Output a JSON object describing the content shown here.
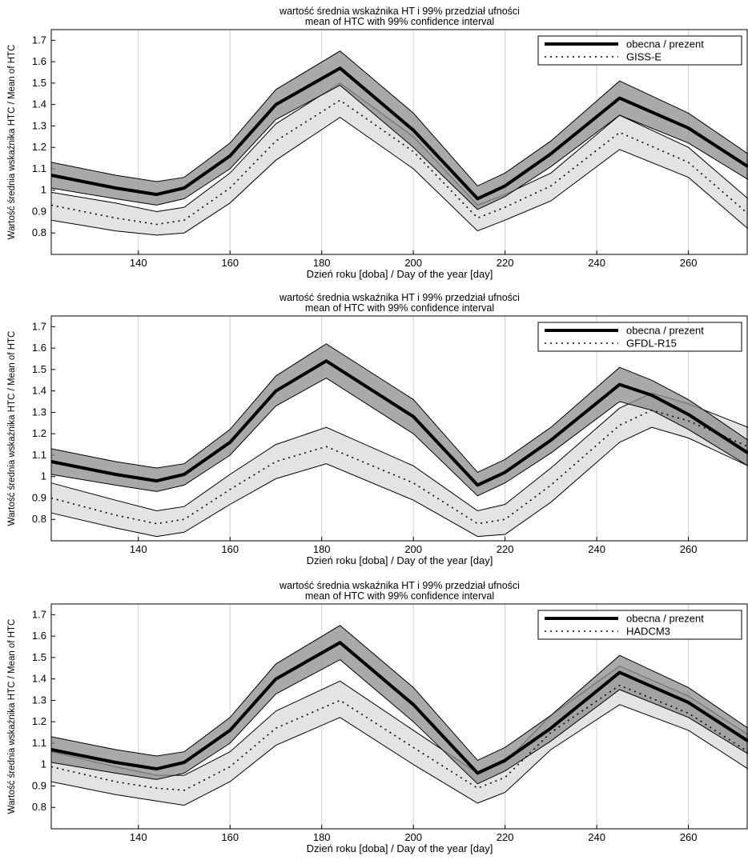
{
  "chart_data": [
    {
      "type": "line",
      "title": "wartość średnia wskaźnika HT i 99% przedział ufności",
      "subtitle": "mean of HTC with 99% confidence interval",
      "xlabel": "Dzień roku [doba] / Day of the year [day]",
      "ylabel": "Wartość średnia wskaźnika HTC / Mean of HTC",
      "xlim": [
        121,
        273
      ],
      "ylim": [
        0.7,
        1.75
      ],
      "xticks": [
        140,
        160,
        180,
        200,
        220,
        240,
        260
      ],
      "yticks": [
        0.8,
        0.9,
        1,
        1.1,
        1.2,
        1.3,
        1.4,
        1.5,
        1.6,
        1.7
      ],
      "grid": true,
      "legend": "top-right",
      "x": [
        121,
        135,
        144,
        150,
        160,
        170,
        184,
        200,
        214,
        220,
        230,
        245,
        260,
        273
      ],
      "series": [
        {
          "name": "obecna / prezent",
          "style": "solid-thick",
          "band_color": "#8c8c8c",
          "values": [
            1.07,
            1.01,
            0.98,
            1.01,
            1.16,
            1.4,
            1.57,
            1.28,
            0.96,
            1.02,
            1.17,
            1.43,
            1.29,
            1.11
          ],
          "lower": [
            1.01,
            0.96,
            0.93,
            0.96,
            1.1,
            1.33,
            1.49,
            1.2,
            0.91,
            0.97,
            1.11,
            1.35,
            1.22,
            1.05
          ],
          "upper": [
            1.13,
            1.07,
            1.04,
            1.06,
            1.22,
            1.47,
            1.65,
            1.36,
            1.02,
            1.08,
            1.23,
            1.51,
            1.36,
            1.17
          ]
        },
        {
          "name": "GISS-E",
          "style": "dotted",
          "band_color": "#e3e3e3",
          "values": [
            0.93,
            0.87,
            0.84,
            0.86,
            1.01,
            1.23,
            1.42,
            1.18,
            0.87,
            0.92,
            1.02,
            1.27,
            1.13,
            0.89
          ],
          "lower": [
            0.86,
            0.81,
            0.79,
            0.8,
            0.94,
            1.14,
            1.34,
            1.1,
            0.81,
            0.86,
            0.95,
            1.19,
            1.06,
            0.82
          ],
          "upper": [
            0.99,
            0.94,
            0.9,
            0.92,
            1.08,
            1.31,
            1.5,
            1.25,
            0.93,
            0.98,
            1.08,
            1.35,
            1.2,
            0.96
          ]
        }
      ]
    },
    {
      "type": "line",
      "title": "wartość średnia wskaźnika HT i 99% przedział ufności",
      "subtitle": "mean of HTC with 99% confidence interval",
      "xlabel": "Dzień roku [doba] / Day of the year [day]",
      "ylabel": "Wartość średnia wskaźnika HTC / Mean of HTC",
      "xlim": [
        121,
        273
      ],
      "ylim": [
        0.7,
        1.75
      ],
      "xticks": [
        140,
        160,
        180,
        200,
        220,
        240,
        260
      ],
      "yticks": [
        0.8,
        0.9,
        1,
        1.1,
        1.2,
        1.3,
        1.4,
        1.5,
        1.6,
        1.7
      ],
      "grid": true,
      "legend": "top-right",
      "x": [
        121,
        135,
        144,
        150,
        160,
        170,
        181,
        200,
        214,
        220,
        230,
        245,
        252,
        260,
        273
      ],
      "series": [
        {
          "name": "obecna / prezent",
          "style": "solid-thick",
          "band_color": "#8c8c8c",
          "values": [
            1.07,
            1.01,
            0.98,
            1.01,
            1.16,
            1.4,
            1.54,
            1.28,
            0.96,
            1.02,
            1.17,
            1.43,
            1.38,
            1.29,
            1.11
          ],
          "lower": [
            1.01,
            0.96,
            0.93,
            0.96,
            1.1,
            1.33,
            1.46,
            1.2,
            0.91,
            0.97,
            1.11,
            1.35,
            1.31,
            1.22,
            1.05
          ],
          "upper": [
            1.13,
            1.07,
            1.04,
            1.06,
            1.22,
            1.47,
            1.62,
            1.36,
            1.02,
            1.08,
            1.23,
            1.51,
            1.45,
            1.36,
            1.17
          ]
        },
        {
          "name": "GFDL-R15",
          "style": "dotted",
          "band_color": "#e3e3e3",
          "values": [
            0.9,
            0.82,
            0.78,
            0.8,
            0.94,
            1.07,
            1.14,
            0.97,
            0.78,
            0.8,
            0.96,
            1.24,
            1.31,
            1.26,
            1.14
          ],
          "lower": [
            0.83,
            0.76,
            0.72,
            0.74,
            0.87,
            0.99,
            1.06,
            0.89,
            0.72,
            0.73,
            0.88,
            1.16,
            1.23,
            1.18,
            1.05
          ],
          "upper": [
            0.97,
            0.89,
            0.84,
            0.86,
            1.01,
            1.15,
            1.23,
            1.05,
            0.84,
            0.87,
            1.04,
            1.32,
            1.39,
            1.34,
            1.23
          ]
        }
      ]
    },
    {
      "type": "line",
      "title": "wartość średnia wskaźnika HT i 99% przedział ufności",
      "subtitle": "mean of HTC with 99% confidence interval",
      "xlabel": "Dzień roku [doba] / Day of the year [day]",
      "ylabel": "Wartość średnia wskaźnika HTC / Mean of HTC",
      "xlim": [
        121,
        273
      ],
      "ylim": [
        0.7,
        1.75
      ],
      "xticks": [
        140,
        160,
        180,
        200,
        220,
        240,
        260
      ],
      "yticks": [
        0.8,
        0.9,
        1,
        1.1,
        1.2,
        1.3,
        1.4,
        1.5,
        1.6,
        1.7
      ],
      "grid": true,
      "legend": "top-right",
      "x": [
        121,
        135,
        144,
        150,
        160,
        170,
        184,
        200,
        214,
        220,
        230,
        245,
        260,
        273
      ],
      "series": [
        {
          "name": "obecna / prezent",
          "style": "solid-thick",
          "band_color": "#8c8c8c",
          "values": [
            1.07,
            1.01,
            0.98,
            1.01,
            1.16,
            1.4,
            1.57,
            1.28,
            0.96,
            1.02,
            1.17,
            1.43,
            1.29,
            1.11
          ],
          "lower": [
            1.01,
            0.96,
            0.93,
            0.96,
            1.1,
            1.33,
            1.49,
            1.2,
            0.91,
            0.97,
            1.11,
            1.35,
            1.22,
            1.05
          ],
          "upper": [
            1.13,
            1.07,
            1.04,
            1.06,
            1.22,
            1.47,
            1.65,
            1.36,
            1.02,
            1.08,
            1.23,
            1.51,
            1.36,
            1.17
          ]
        },
        {
          "name": "HADCM3",
          "style": "dotted",
          "band_color": "#e3e3e3",
          "values": [
            0.99,
            0.92,
            0.89,
            0.88,
            0.99,
            1.17,
            1.3,
            1.08,
            0.89,
            0.94,
            1.15,
            1.37,
            1.24,
            1.06
          ],
          "lower": [
            0.92,
            0.86,
            0.83,
            0.81,
            0.92,
            1.09,
            1.22,
            1.0,
            0.82,
            0.87,
            1.07,
            1.28,
            1.16,
            0.98
          ],
          "upper": [
            1.06,
            0.99,
            0.95,
            0.95,
            1.06,
            1.25,
            1.39,
            1.16,
            0.96,
            1.01,
            1.23,
            1.46,
            1.32,
            1.14
          ]
        }
      ]
    }
  ]
}
